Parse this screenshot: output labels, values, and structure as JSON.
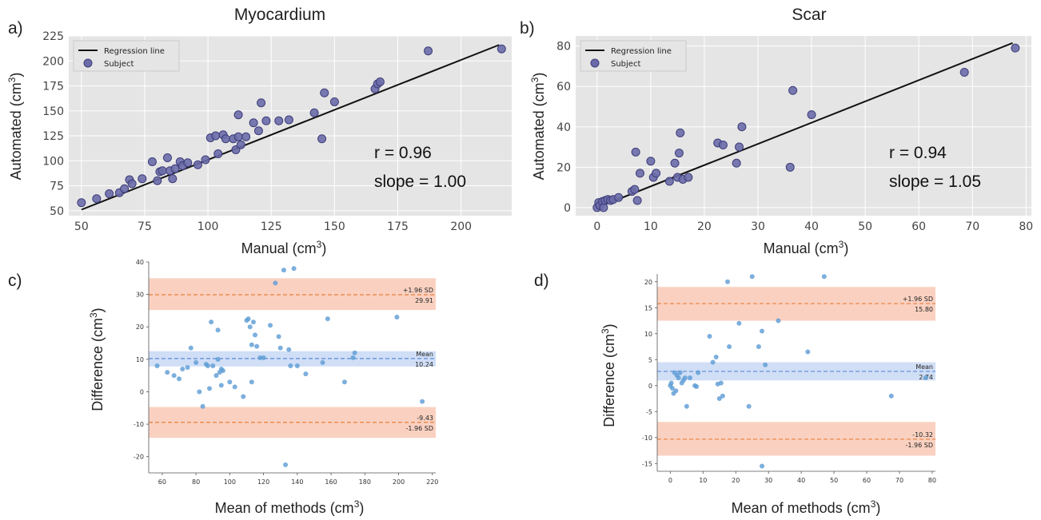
{
  "panels": {
    "a": {
      "letter": "a)"
    },
    "b": {
      "letter": "b)"
    },
    "c": {
      "letter": "c)"
    },
    "d": {
      "letter": "d)"
    }
  },
  "colors": {
    "plot_bg": "#e5e5e5",
    "point_fill": "#6b6baa",
    "point_stroke": "#3d3d7a",
    "regression": "#111111",
    "ba_point": "#5b9bd5",
    "ba_dashed": "#e8803a",
    "sd_band": "#f9c9b6",
    "mean_band": "#c8d8f4",
    "mean_dashed": "#5b8bd8"
  },
  "chart_data": [
    {
      "type": "scatter",
      "panel": "a",
      "title": "Myocardium",
      "xlabel": "Manual (cm",
      "xlabel_sup": "3",
      "xlabel_end": ")",
      "ylabel": "Automated (cm",
      "ylabel_sup": "3",
      "ylabel_end": ")",
      "xlim": [
        45,
        220
      ],
      "ylim": [
        45,
        225
      ],
      "xticks": [
        50,
        75,
        100,
        125,
        150,
        175,
        200
      ],
      "yticks": [
        50,
        75,
        100,
        125,
        150,
        175,
        200,
        225
      ],
      "legend": {
        "position": "top-left",
        "line_label": "Regression line",
        "point_label": "Subject"
      },
      "stats": [
        "r = 0.96",
        "slope = 1.00"
      ],
      "regression": [
        [
          50,
          51
        ],
        [
          215,
          216
        ]
      ],
      "x": [
        50,
        56,
        61,
        65,
        67,
        69,
        70,
        74,
        78,
        80,
        81,
        82,
        84,
        85,
        86,
        87,
        89,
        90,
        92,
        96,
        99,
        101,
        103,
        104,
        106,
        107,
        110,
        111,
        112,
        112,
        113,
        115,
        118,
        120,
        121,
        123,
        128,
        132,
        142,
        145,
        146,
        150,
        166,
        167,
        168,
        187,
        216
      ],
      "y": [
        58,
        62,
        67,
        68,
        72,
        81,
        77,
        82,
        99,
        80,
        89,
        90,
        103,
        90,
        82,
        92,
        99,
        95,
        98,
        96,
        101,
        123,
        125,
        107,
        126,
        122,
        122,
        111,
        124,
        146,
        116,
        124,
        138,
        130,
        158,
        140,
        140,
        141,
        148,
        122,
        168,
        159,
        172,
        177,
        179,
        210,
        212
      ]
    },
    {
      "type": "scatter",
      "panel": "b",
      "title": "Scar",
      "xlabel": "Manual (cm",
      "xlabel_sup": "3",
      "xlabel_end": ")",
      "ylabel": "Automated (cm",
      "ylabel_sup": "3",
      "ylabel_end": ")",
      "xlim": [
        -4,
        81
      ],
      "ylim": [
        -4,
        85
      ],
      "xticks": [
        0,
        10,
        20,
        30,
        40,
        50,
        60,
        70,
        80
      ],
      "yticks": [
        0,
        20,
        40,
        60,
        80
      ],
      "legend": {
        "position": "top-left",
        "line_label": "Regression line",
        "point_label": "Subject"
      },
      "stats": [
        "r = 0.94",
        "slope = 1.05"
      ],
      "regression": [
        [
          0,
          0
        ],
        [
          77.5,
          81.5
        ]
      ],
      "x": [
        0,
        0.3,
        0.5,
        1,
        1.2,
        1.5,
        2,
        2.5,
        3,
        4,
        6.5,
        7,
        7.2,
        7.5,
        8,
        10,
        10.5,
        11,
        13.5,
        14.5,
        15,
        15.3,
        15.5,
        16,
        17,
        22.5,
        23.5,
        26,
        26.5,
        27,
        36,
        36.5,
        40,
        68.5,
        78
      ],
      "y": [
        0,
        2.5,
        1,
        3,
        0,
        3.5,
        4,
        3.5,
        4,
        5,
        8,
        9,
        27.5,
        3.5,
        17,
        23,
        15,
        17,
        13,
        22,
        15,
        27,
        37,
        14,
        15,
        32,
        31,
        22,
        30,
        40,
        20,
        58,
        46,
        67,
        79
      ]
    },
    {
      "type": "scatter",
      "panel": "c",
      "subtype": "bland-altman",
      "xlabel": "Mean of methods (cm",
      "xlabel_sup": "3",
      "xlabel_end": ")",
      "ylabel": "Difference (cm",
      "ylabel_sup": "3",
      "ylabel_end": ")",
      "xlim": [
        52,
        222
      ],
      "ylim": [
        -25,
        40
      ],
      "xticks": [
        60,
        80,
        100,
        120,
        140,
        160,
        180,
        200,
        220
      ],
      "yticks": [
        -20,
        -10,
        0,
        10,
        20,
        30,
        40
      ],
      "upper": {
        "value": 29.91,
        "label_top": "+1.96 SD",
        "label_bottom": "29.91",
        "band": [
          25.2,
          35
        ]
      },
      "mean": {
        "value": 10.24,
        "label_top": "Mean",
        "label_bottom": "10.24",
        "band": [
          7.8,
          12.5
        ]
      },
      "lower": {
        "value": -9.43,
        "label_top": "-9.43",
        "label_bottom": "-1.96 SD",
        "band": [
          -14.2,
          -4.7
        ]
      },
      "x": [
        57,
        63,
        67,
        70,
        72,
        75,
        77,
        80,
        82,
        84,
        86,
        87,
        88,
        89,
        90,
        92,
        93,
        93,
        94,
        95,
        95,
        96,
        100,
        103,
        108,
        110,
        111,
        112,
        113,
        113,
        114,
        115,
        116,
        118,
        120,
        124,
        127,
        129,
        130,
        132,
        133,
        135,
        136,
        138,
        140,
        145,
        155,
        158,
        168,
        173,
        174,
        199,
        214
      ],
      "y": [
        8,
        6,
        5,
        4,
        7,
        7.5,
        13.5,
        9,
        0,
        -4.5,
        8.5,
        8,
        1,
        21.5,
        8,
        5,
        10,
        19,
        6,
        7,
        2,
        6.5,
        3,
        1.5,
        -1.5,
        22,
        22.5,
        20,
        14.5,
        3,
        21.5,
        17.5,
        14,
        10.5,
        10.5,
        20.5,
        33.5,
        17,
        13.5,
        37.5,
        -22.5,
        13,
        8,
        38,
        8,
        5.5,
        9,
        22.5,
        3,
        10.5,
        12,
        23,
        -3
      ]
    },
    {
      "type": "scatter",
      "panel": "d",
      "subtype": "bland-altman",
      "xlabel": "Mean of methods (cm",
      "xlabel_sup": "3",
      "xlabel_end": ")",
      "ylabel": "Difference (cm",
      "ylabel_sup": "3",
      "ylabel_end": ")",
      "xlim": [
        -4,
        81
      ],
      "ylim": [
        -16.5,
        21.5
      ],
      "xticks": [
        0,
        10,
        20,
        30,
        40,
        50,
        60,
        70,
        80
      ],
      "yticks": [
        -15,
        -10,
        -5,
        0,
        5,
        10,
        15,
        20
      ],
      "upper": {
        "value": 15.8,
        "label_top": "+1.96 SD",
        "label_bottom": "15.80",
        "band": [
          12.5,
          19
        ]
      },
      "mean": {
        "value": 2.74,
        "label_top": "Mean",
        "label_bottom": "2.74",
        "band": [
          1,
          4.5
        ]
      },
      "lower": {
        "value": -10.32,
        "label_top": "-10.32",
        "label_bottom": "-1.96 SD",
        "band": [
          -13.5,
          -7
        ]
      },
      "x": [
        0,
        0.3,
        0.6,
        1,
        1.3,
        1.7,
        2,
        2.5,
        3,
        3.5,
        4,
        4.5,
        5,
        6,
        7.5,
        8,
        8.5,
        12,
        13,
        14,
        14.5,
        15,
        15.5,
        16,
        17.5,
        18,
        21,
        24,
        25,
        27,
        28,
        28,
        29,
        33,
        42,
        47,
        67.5,
        78
      ],
      "y": [
        0,
        0.5,
        -0.5,
        -1.5,
        2.5,
        -1,
        2,
        1.5,
        2.5,
        0.5,
        1,
        1.5,
        -4,
        1.5,
        0,
        -0.2,
        2.5,
        9.5,
        4.5,
        5.5,
        0.3,
        -2.5,
        0.5,
        -2,
        20,
        7.5,
        12,
        -4,
        21,
        7.5,
        10.5,
        -15.5,
        4,
        12.5,
        6.5,
        21,
        -2,
        1.5
      ]
    }
  ]
}
